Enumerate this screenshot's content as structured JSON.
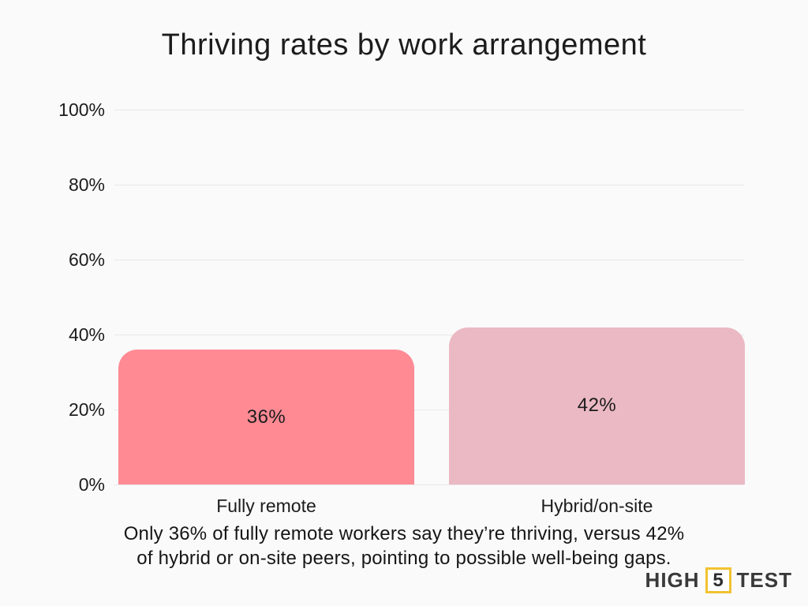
{
  "title": "Thriving rates by work arrangement",
  "chart_data": {
    "type": "bar",
    "title": "Thriving rates by work arrangement",
    "categories": [
      "Fully remote",
      "Hybrid/on-site"
    ],
    "values": [
      36,
      42
    ],
    "value_labels": [
      "36%",
      "42%"
    ],
    "bar_colors": [
      "#FF8A94",
      "#EBB9C3"
    ],
    "xlabel": "",
    "ylabel": "",
    "ylim": [
      0,
      100
    ],
    "yticks": [
      100,
      80,
      60,
      40,
      20,
      0
    ],
    "ytick_labels": [
      "100%",
      "80%",
      "60%",
      "40%",
      "20%",
      "0%"
    ],
    "grid": true,
    "legend": false
  },
  "caption": {
    "line1": "Only 36% of fully remote workers say they’re thriving, versus 42%",
    "line2": "of hybrid or on-site peers, pointing to possible well-being gaps."
  },
  "logo": {
    "part1": "HIGH",
    "part2": "5",
    "part3": "TEST",
    "accent_color": "#F2C230"
  },
  "colors": {
    "background": "#FAFAFA",
    "gridline": "#E8E8E8",
    "text": "#1C1C1C"
  }
}
